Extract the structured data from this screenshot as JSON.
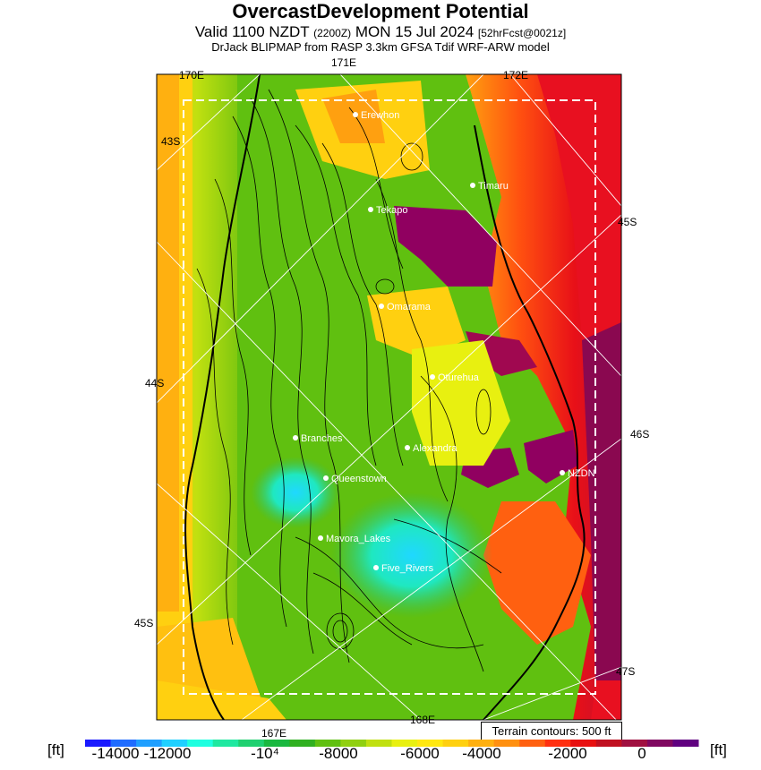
{
  "header": {
    "title": "OvercastDevelopment Potential",
    "valid_prefix": "Valid 1100 NZDT",
    "valid_utc": "(2200Z)",
    "valid_date": "MON 15 Jul 2024",
    "forecast": "[52hrFcst@0021z]",
    "model_line": "DrJack BLIPMAP from RASP 3.3km GFSA Tdif WRF-ARW model"
  },
  "map": {
    "grid_labels": {
      "lon_170e": "170E",
      "lon_171e": "171E",
      "lon_172e": "172E",
      "lon_167e": "167E",
      "lon_168e": "168E",
      "lat_43s": "43S",
      "lat_44s": "44S",
      "lat_45s_left": "45S",
      "lat_45s_right": "45S",
      "lat_46s": "46S",
      "lat_47s": "47S"
    },
    "places": [
      {
        "name": "Erewhon"
      },
      {
        "name": "Timaru"
      },
      {
        "name": "Tekapo"
      },
      {
        "name": "Omarama"
      },
      {
        "name": "Oturehua"
      },
      {
        "name": "Branches"
      },
      {
        "name": "Alexandra"
      },
      {
        "name": "NZDN"
      },
      {
        "name": "Queenstown"
      },
      {
        "name": "Mavora_Lakes"
      },
      {
        "name": "Five_Rivers"
      }
    ],
    "terrain_note": "Terrain contours: 500 ft"
  },
  "colorbar": {
    "unit_left": "[ft]",
    "unit_right": "[ft]",
    "ticks": [
      "-14000",
      "-12000",
      "-10⁴",
      "-8000",
      "-6000",
      "-4000",
      "-2000",
      "0"
    ],
    "colors": [
      "#1a1aff",
      "#1f6cff",
      "#1f9fff",
      "#1fd0ff",
      "#1fffe0",
      "#1fe8a0",
      "#1fd070",
      "#1ab840",
      "#30b020",
      "#60c010",
      "#90d010",
      "#c0e010",
      "#e8f010",
      "#ffe810",
      "#ffd010",
      "#ffb010",
      "#ff9010",
      "#ff6010",
      "#ff3010",
      "#e81010",
      "#c01020",
      "#a01040",
      "#800860",
      "#600080"
    ]
  }
}
